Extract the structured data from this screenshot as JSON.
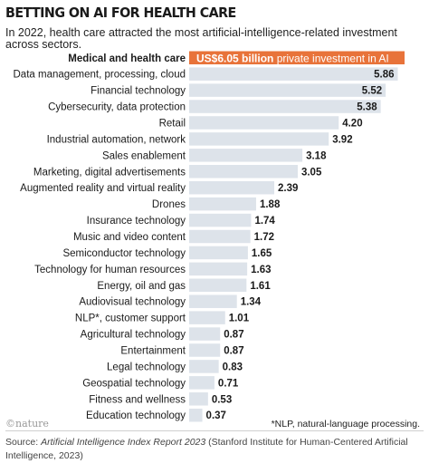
{
  "header": {
    "title": "BETTING ON AI FOR HEALTH CARE",
    "subtitle": "In 2022, health care attracted the most artificial-intelligence-related investment across sectors."
  },
  "highlight": {
    "category": "Medical and health care",
    "value_text": "US$6.05 billion",
    "suffix_text": "private investment in AI",
    "value": 6.05
  },
  "chart_data": {
    "type": "bar",
    "orientation": "horizontal",
    "title": "BETTING ON AI FOR HEALTH CARE",
    "categories": [
      "Medical and health care",
      "Data management, processing, cloud",
      "Financial technology",
      "Cybersecurity, data protection",
      "Retail",
      "Industrial automation, network",
      "Sales enablement",
      "Marketing, digital advertisements",
      "Augmented reality and virtual reality",
      "Drones",
      "Insurance technology",
      "Music and video content",
      "Semiconductor technology",
      "Technology for human resources",
      "Energy, oil and gas",
      "Audiovisual technology",
      "NLP*, customer support",
      "Agricultural technology",
      "Entertainment",
      "Legal technology",
      "Geospatial technology",
      "Fitness and wellness",
      "Education technology"
    ],
    "values": [
      6.05,
      5.86,
      5.52,
      5.38,
      4.2,
      3.92,
      3.18,
      3.05,
      2.39,
      1.88,
      1.74,
      1.72,
      1.65,
      1.63,
      1.61,
      1.34,
      1.01,
      0.87,
      0.87,
      0.83,
      0.71,
      0.53,
      0.37
    ],
    "value_labels": [
      "",
      "5.86",
      "5.52",
      "5.38",
      "4.20",
      "3.92",
      "3.18",
      "3.05",
      "2.39",
      "1.88",
      "1.74",
      "1.72",
      "1.65",
      "1.63",
      "1.61",
      "1.34",
      "1.01",
      "0.87",
      "0.87",
      "0.83",
      "0.71",
      "0.53",
      "0.37"
    ],
    "xlim": [
      0,
      6.05
    ],
    "grid": false,
    "legend": "none",
    "unit": "US$ billion",
    "colors": {
      "highlight": "#e8733a",
      "bar": "#dde3ea",
      "background_track": "#dde3ea",
      "text": "#1a1a1a"
    }
  },
  "footer": {
    "brand": "©nature",
    "footnote": "*NLP, natural-language processing.",
    "source_prefix": "Source: ",
    "source_title": "Artificial Intelligence Index Report 2023",
    "source_suffix": " (Stanford Institute for Human-Centered Artificial Intelligence, 2023)"
  }
}
